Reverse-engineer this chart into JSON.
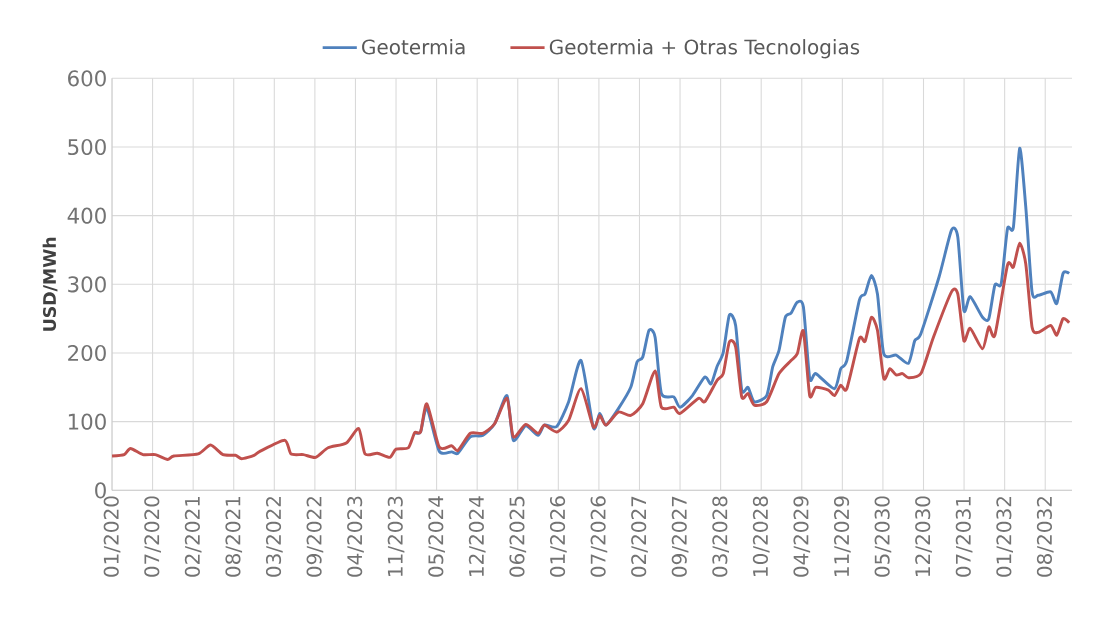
{
  "chart_data": {
    "type": "line",
    "ylabel": "USD/MWh",
    "grid": true,
    "legend": "top",
    "xlim": [
      "2020-01-01",
      "2032-12-15"
    ],
    "ylim": [
      0,
      600
    ],
    "yticks": [
      0,
      100,
      200,
      300,
      400,
      500,
      600
    ],
    "xticks": [
      {
        "value": "2020-01-01",
        "label": "01/2020"
      },
      {
        "value": "2020-07-19",
        "label": "07/2020"
      },
      {
        "value": "2021-02-04",
        "label": "02/2021"
      },
      {
        "value": "2021-08-23",
        "label": "08/2021"
      },
      {
        "value": "2022-03-11",
        "label": "03/2022"
      },
      {
        "value": "2022-09-27",
        "label": "09/2022"
      },
      {
        "value": "2023-04-15",
        "label": "04/2023"
      },
      {
        "value": "2023-11-01",
        "label": "11/2023"
      },
      {
        "value": "2024-05-19",
        "label": "05/2024"
      },
      {
        "value": "2024-12-05",
        "label": "12/2024"
      },
      {
        "value": "2025-06-23",
        "label": "06/2025"
      },
      {
        "value": "2026-01-09",
        "label": "01/2026"
      },
      {
        "value": "2026-07-28",
        "label": "07/2026"
      },
      {
        "value": "2027-02-13",
        "label": "02/2027"
      },
      {
        "value": "2027-09-01",
        "label": "09/2027"
      },
      {
        "value": "2028-03-19",
        "label": "03/2028"
      },
      {
        "value": "2028-10-05",
        "label": "10/2028"
      },
      {
        "value": "2029-04-23",
        "label": "04/2029"
      },
      {
        "value": "2029-11-09",
        "label": "11/2029"
      },
      {
        "value": "2030-05-28",
        "label": "05/2030"
      },
      {
        "value": "2030-12-14",
        "label": "12/2030"
      },
      {
        "value": "2031-07-02",
        "label": "07/2031"
      },
      {
        "value": "2032-01-18",
        "label": "01/2032"
      },
      {
        "value": "2032-08-05",
        "label": "08/2032"
      }
    ],
    "series": [
      {
        "name": "Geotermia",
        "color": "#4f81bd",
        "x": [
          "2024-02",
          "2024-03",
          "2024-04",
          "2024-06",
          "2024-08",
          "2024-09",
          "2024-11",
          "2025-01",
          "2025-03",
          "2025-05",
          "2025-06",
          "2025-08",
          "2025-10",
          "2025-11",
          "2026-01",
          "2026-03",
          "2026-05",
          "2026-07",
          "2026-08",
          "2026-09",
          "2026-11",
          "2027-01",
          "2027-02",
          "2027-03",
          "2027-04",
          "2027-05",
          "2027-06",
          "2027-08",
          "2027-09",
          "2027-11",
          "2028-01",
          "2028-02",
          "2028-03",
          "2028-04",
          "2028-05",
          "2028-06",
          "2028-07",
          "2028-08",
          "2028-09",
          "2028-11",
          "2028-12",
          "2029-01",
          "2029-02",
          "2029-03",
          "2029-04",
          "2029-05",
          "2029-06",
          "2029-07",
          "2029-10",
          "2029-11",
          "2029-12",
          "2030-02",
          "2030-03",
          "2030-04",
          "2030-05",
          "2030-06",
          "2030-08",
          "2030-10",
          "2030-11",
          "2030-12",
          "2031-03",
          "2031-05",
          "2031-06",
          "2031-07",
          "2031-08",
          "2031-10",
          "2031-11",
          "2031-12",
          "2032-01",
          "2032-02",
          "2032-03",
          "2032-04",
          "2032-05",
          "2032-06",
          "2032-07",
          "2032-09",
          "2032-10",
          "2032-11",
          "2032-12"
        ],
        "values": [
          84,
          85,
          120,
          57,
          56,
          54,
          78,
          80,
          97,
          138,
          73,
          94,
          80,
          95,
          93,
          129,
          189,
          91,
          112,
          95,
          119,
          150,
          187,
          194,
          233,
          223,
          141,
          136,
          121,
          138,
          165,
          155,
          180,
          201,
          255,
          240,
          146,
          150,
          129,
          138,
          180,
          204,
          252,
          258,
          274,
          267,
          163,
          170,
          148,
          177,
          189,
          277,
          286,
          313,
          286,
          199,
          197,
          185,
          218,
          228,
          311,
          379,
          369,
          262,
          282,
          252,
          250,
          299,
          301,
          381,
          383,
          498,
          413,
          289,
          284,
          289,
          272,
          316,
          316
        ]
      },
      {
        "name": "Geotermia + Otras Tecnologias",
        "color": "#c0504d",
        "x": [
          "2020-01",
          "2020-03",
          "2020-04",
          "2020-06",
          "2020-08",
          "2020-10",
          "2020-11",
          "2021-03",
          "2021-05",
          "2021-07",
          "2021-09",
          "2021-10",
          "2021-12",
          "2022-01",
          "2022-05",
          "2022-06",
          "2022-08",
          "2022-10",
          "2022-12",
          "2023-03",
          "2023-05",
          "2023-06",
          "2023-08",
          "2023-10",
          "2023-11",
          "2024-01",
          "2024-02",
          "2024-03",
          "2024-04",
          "2024-06",
          "2024-08",
          "2024-09",
          "2024-11",
          "2025-01",
          "2025-03",
          "2025-05",
          "2025-06",
          "2025-08",
          "2025-10",
          "2025-11",
          "2026-01",
          "2026-03",
          "2026-05",
          "2026-07",
          "2026-08",
          "2026-09",
          "2026-11",
          "2027-01",
          "2027-03",
          "2027-05",
          "2027-06",
          "2027-08",
          "2027-09",
          "2027-12",
          "2028-01",
          "2028-03",
          "2028-04",
          "2028-05",
          "2028-06",
          "2028-07",
          "2028-08",
          "2028-09",
          "2028-11",
          "2029-01",
          "2029-03",
          "2029-04",
          "2029-05",
          "2029-06",
          "2029-07",
          "2029-09",
          "2029-10",
          "2029-11",
          "2029-12",
          "2030-02",
          "2030-03",
          "2030-04",
          "2030-05",
          "2030-06",
          "2030-07",
          "2030-08",
          "2030-09",
          "2030-10",
          "2030-12",
          "2031-02",
          "2031-05",
          "2031-06",
          "2031-07",
          "2031-08",
          "2031-10",
          "2031-11",
          "2031-12",
          "2032-02",
          "2032-03",
          "2032-04",
          "2032-05",
          "2032-06",
          "2032-07",
          "2032-09",
          "2032-10",
          "2032-11",
          "2032-12"
        ],
        "values": [
          50,
          52,
          61,
          52,
          52,
          45,
          50,
          53,
          66,
          52,
          51,
          46,
          51,
          57,
          73,
          53,
          52,
          48,
          62,
          69,
          90,
          53,
          54,
          48,
          60,
          62,
          84,
          85,
          126,
          63,
          65,
          58,
          83,
          83,
          97,
          134,
          78,
          96,
          83,
          95,
          85,
          102,
          148,
          92,
          109,
          95,
          114,
          109,
          126,
          174,
          121,
          121,
          112,
          134,
          129,
          160,
          170,
          216,
          209,
          136,
          141,
          124,
          129,
          170,
          189,
          199,
          232,
          138,
          150,
          146,
          138,
          153,
          148,
          221,
          217,
          252,
          233,
          163,
          177,
          168,
          170,
          164,
          170,
          223,
          289,
          286,
          218,
          236,
          206,
          238,
          226,
          328,
          325,
          360,
          330,
          238,
          230,
          240,
          226,
          250,
          244
        ]
      }
    ]
  }
}
